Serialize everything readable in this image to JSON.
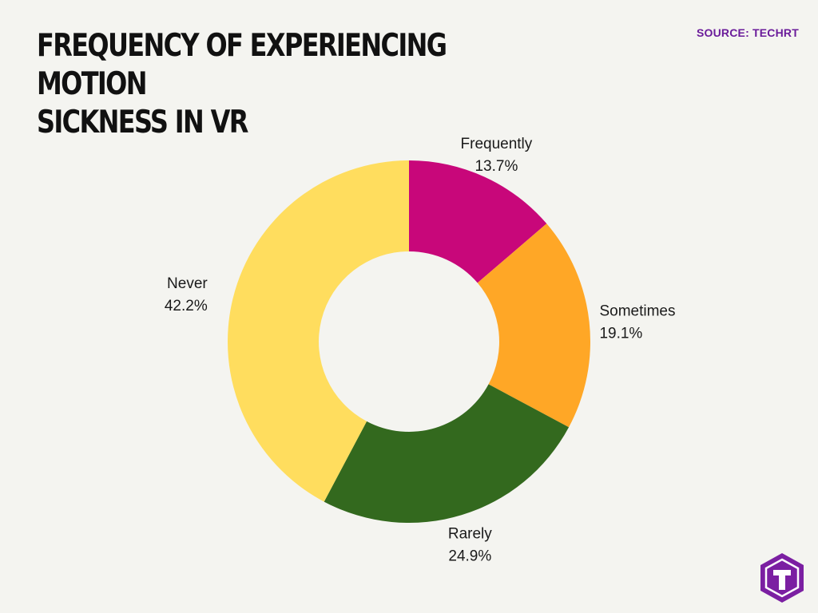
{
  "title": "FREQUENCY OF EXPERIENCING MOTION\nSICKNESS IN VR",
  "source": "SOURCE: TECHRT",
  "colors": {
    "background": "#f4f4f0",
    "title": "#111111",
    "source": "#6a1b9a",
    "logo": "#7b1fa2"
  },
  "logo_icon": "techrt-hexagon-logo",
  "chart_data": {
    "type": "pie",
    "variant": "donut",
    "categories": [
      "Frequently",
      "Sometimes",
      "Rarely",
      "Never"
    ],
    "values": [
      13.7,
      19.1,
      24.9,
      42.2
    ],
    "value_labels": [
      "13.7%",
      "19.1%",
      "24.9%",
      "42.2%"
    ],
    "colors": [
      "#c8077a",
      "#ffa726",
      "#33691e",
      "#ffdd5e"
    ],
    "start": "12 o'clock",
    "direction": "clockwise",
    "legend": "none"
  }
}
